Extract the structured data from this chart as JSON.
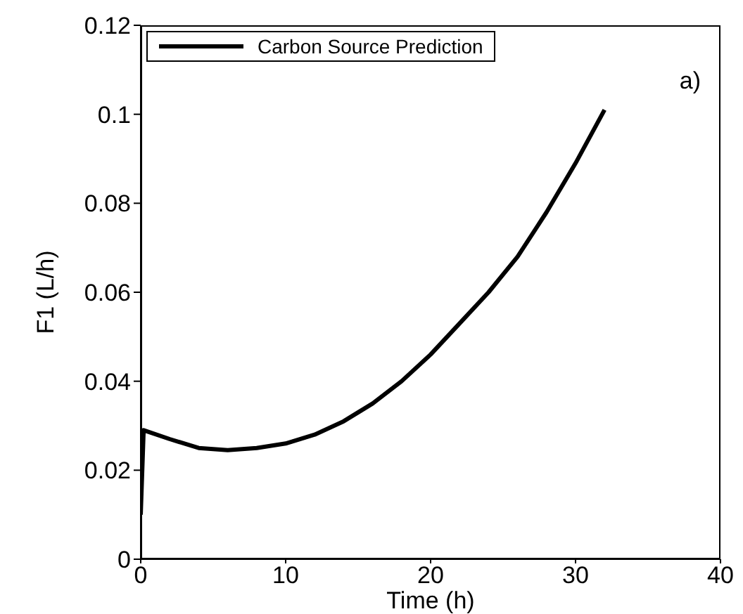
{
  "chart_data": {
    "type": "line",
    "xlabel": "Time (h)",
    "ylabel": "F1 (L/h)",
    "annotations": [
      "a)"
    ],
    "series": [
      {
        "name": "Carbon Source Prediction",
        "color": "#000000",
        "x": [
          0,
          0.2,
          2,
          4,
          6,
          8,
          10,
          12,
          14,
          16,
          18,
          20,
          22,
          24,
          26,
          28,
          30,
          32
        ],
        "values": [
          0.01,
          0.029,
          0.027,
          0.025,
          0.0245,
          0.025,
          0.026,
          0.028,
          0.031,
          0.035,
          0.04,
          0.046,
          0.053,
          0.06,
          0.068,
          0.078,
          0.089,
          0.101
        ]
      }
    ],
    "xlim": [
      0,
      40
    ],
    "xticks": [
      0,
      10,
      20,
      30,
      40
    ],
    "ylim": [
      0,
      0.12
    ],
    "yticks": [
      0,
      0.02,
      0.04,
      0.06,
      0.08,
      0.1,
      0.12
    ],
    "grid": false,
    "legend": "top left",
    "marker": "none",
    "line_style": "solid"
  }
}
